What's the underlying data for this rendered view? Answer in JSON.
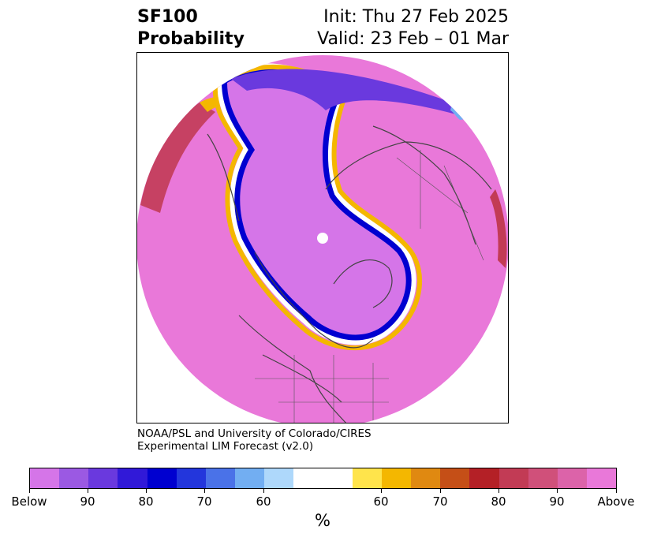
{
  "title": {
    "line1_left": "SF100",
    "line2_left": "Probability",
    "line1_right": "Init: Thu 27 Feb 2025",
    "line2_right": "Valid: 23 Feb – 01 Mar"
  },
  "credit": {
    "line1": "NOAA/PSL and University of Colorado/CIRES",
    "line2": "Experimental LIM Forecast (v2.0)"
  },
  "colorbar": {
    "unit": "%",
    "colors": [
      "#d575e8",
      "#9b59e3",
      "#6a39de",
      "#3119d8",
      "#0000d0",
      "#2336dc",
      "#4a72e8",
      "#72aef2",
      "#aed8fb",
      "#ffffff",
      "#ffffff",
      "#ffe44b",
      "#f4b700",
      "#e08911",
      "#c54f17",
      "#b42026",
      "#c23b55",
      "#d0507a",
      "#dc63a9",
      "#e978d9"
    ],
    "labels": [
      "Below",
      "90",
      "80",
      "70",
      "60",
      "60",
      "70",
      "80",
      "90",
      "Above"
    ]
  },
  "map": {
    "colors": {
      "above": "#e978d9",
      "below": "#d575e8",
      "deep_below": "#6a39de",
      "ocean_edge": "#ffffff"
    }
  }
}
